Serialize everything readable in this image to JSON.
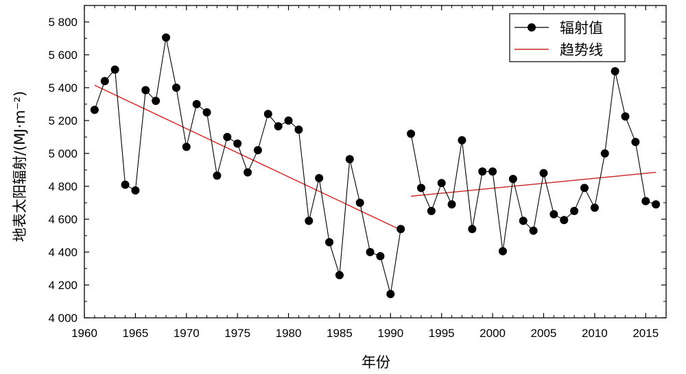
{
  "chart_data": {
    "type": "line",
    "xlabel": "年份",
    "ylabel": "地表太阳辐射/(MJ·m⁻²)",
    "xlim": [
      1960,
      2017
    ],
    "ylim": [
      4000,
      5900
    ],
    "x_ticks": [
      1960,
      1965,
      1970,
      1975,
      1980,
      1985,
      1990,
      1995,
      2000,
      2005,
      2010,
      2015
    ],
    "x_tick_labels": [
      "1960",
      "1965",
      "1970",
      "1975",
      "1980",
      "1985",
      "1990",
      "1995",
      "2000",
      "2005",
      "2010",
      "2015"
    ],
    "y_ticks": [
      4000,
      4200,
      4400,
      4600,
      4800,
      5000,
      5200,
      5400,
      5600,
      5800
    ],
    "y_tick_labels": [
      "4 000",
      "4 200",
      "4 400",
      "4 600",
      "4 800",
      "5 000",
      "5 200",
      "5 400",
      "5 600",
      "5 800"
    ],
    "grid": false,
    "legend_position": "top-right",
    "series": [
      {
        "name": "辐射值",
        "style": "line-with-markers",
        "color": "#000000",
        "segments": [
          {
            "x": [
              1961,
              1962,
              1963,
              1964,
              1965,
              1966,
              1967,
              1968,
              1969,
              1970,
              1971,
              1972,
              1973,
              1974,
              1975,
              1976,
              1977,
              1978,
              1979,
              1980,
              1981,
              1982,
              1983,
              1984,
              1985,
              1986,
              1987,
              1988,
              1989,
              1990,
              1991
            ],
            "y": [
              5265,
              5440,
              5510,
              4810,
              4775,
              5385,
              5320,
              5705,
              5400,
              5040,
              5300,
              5250,
              4865,
              5100,
              5060,
              4885,
              5020,
              5240,
              5165,
              5200,
              5145,
              4590,
              4850,
              4460,
              4260,
              4965,
              4700,
              4400,
              4375,
              4145,
              4540
            ]
          },
          {
            "x": [
              1992,
              1993,
              1994,
              1995,
              1996,
              1997,
              1998,
              1999,
              2000,
              2001,
              2002,
              2003,
              2004,
              2005,
              2006,
              2007,
              2008,
              2009,
              2010,
              2011,
              2012,
              2013,
              2014,
              2015,
              2016
            ],
            "y": [
              5120,
              4790,
              4650,
              4820,
              4690,
              5080,
              4540,
              4890,
              4890,
              4405,
              4845,
              4590,
              4530,
              4880,
              4630,
              4595,
              4650,
              4790,
              4670,
              5000,
              5500,
              5225,
              5070,
              4710,
              4690
            ]
          }
        ]
      },
      {
        "name": "趋势线",
        "style": "line",
        "color": "#cc2222",
        "segments": [
          {
            "x": [
              1961,
              1991
            ],
            "y": [
              5415,
              4535
            ]
          },
          {
            "x": [
              1992,
              2016
            ],
            "y": [
              4740,
              4885
            ]
          }
        ]
      }
    ]
  }
}
